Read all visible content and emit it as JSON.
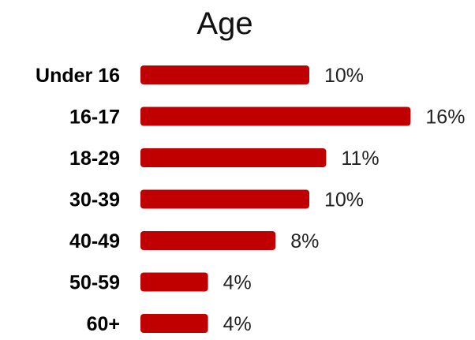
{
  "chart_data": {
    "type": "bar",
    "orientation": "horizontal",
    "title": "Age",
    "categories": [
      "Under 16",
      "16-17",
      "18-29",
      "30-39",
      "40-49",
      "50-59",
      "60+"
    ],
    "values": [
      10,
      16,
      11,
      10,
      8,
      4,
      4
    ],
    "value_labels": [
      "10%",
      "16%",
      "11%",
      "10%",
      "8%",
      "4%",
      "4%"
    ],
    "unit": "%",
    "bar_color": "#c00000",
    "grid": false,
    "legend": "none"
  }
}
